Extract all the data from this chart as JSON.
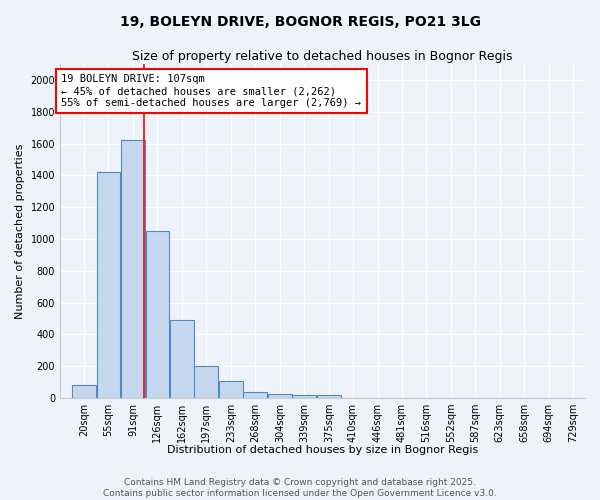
{
  "title": "19, BOLEYN DRIVE, BOGNOR REGIS, PO21 3LG",
  "subtitle": "Size of property relative to detached houses in Bognor Regis",
  "xlabel": "Distribution of detached houses by size in Bognor Regis",
  "ylabel": "Number of detached properties",
  "bin_labels": [
    "20sqm",
    "55sqm",
    "91sqm",
    "126sqm",
    "162sqm",
    "197sqm",
    "233sqm",
    "268sqm",
    "304sqm",
    "339sqm",
    "375sqm",
    "410sqm",
    "446sqm",
    "481sqm",
    "516sqm",
    "552sqm",
    "587sqm",
    "623sqm",
    "658sqm",
    "694sqm",
    "729sqm"
  ],
  "bin_centers": [
    20,
    55,
    91,
    126,
    162,
    197,
    233,
    268,
    304,
    339,
    375,
    410,
    446,
    481,
    516,
    552,
    587,
    623,
    658,
    694,
    729
  ],
  "bin_width": 35,
  "counts": [
    80,
    1420,
    1620,
    1050,
    490,
    200,
    105,
    40,
    25,
    20,
    15,
    0,
    0,
    0,
    0,
    0,
    0,
    0,
    0,
    0,
    0
  ],
  "bar_color": "#c5d8f0",
  "bar_edge_color": "#5588bb",
  "red_line_x": 107,
  "annotation_text": "19 BOLEYN DRIVE: 107sqm\n← 45% of detached houses are smaller (2,262)\n55% of semi-detached houses are larger (2,769) →",
  "annotation_box_color": "white",
  "annotation_box_edge_color": "red",
  "ylim": [
    0,
    2100
  ],
  "yticks": [
    0,
    200,
    400,
    600,
    800,
    1000,
    1200,
    1400,
    1600,
    1800,
    2000
  ],
  "bg_color": "#eef2fb",
  "grid_color": "#ffffff",
  "footer_line1": "Contains HM Land Registry data © Crown copyright and database right 2025.",
  "footer_line2": "Contains public sector information licensed under the Open Government Licence v3.0.",
  "title_fontsize": 10,
  "subtitle_fontsize": 9,
  "axis_label_fontsize": 8,
  "tick_fontsize": 7,
  "annotation_fontsize": 7.5,
  "footer_fontsize": 6.5
}
